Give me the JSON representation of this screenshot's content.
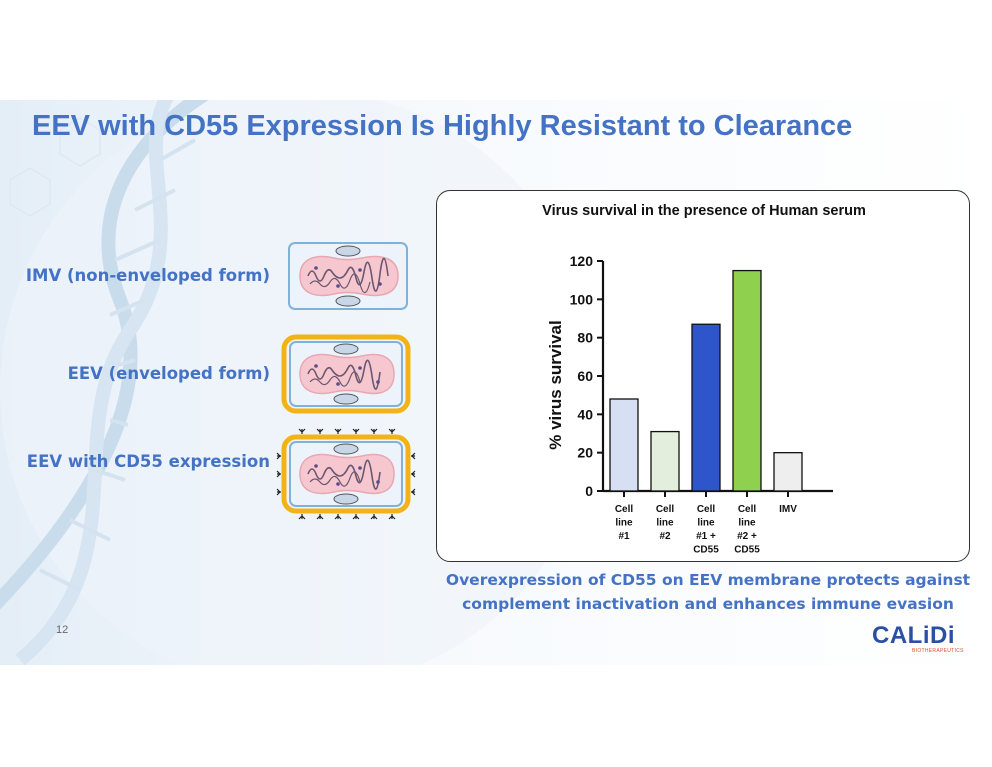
{
  "slide": {
    "title": "EEV with CD55 Expression Is Highly Resistant to Clearance",
    "page_number": "12",
    "labels": {
      "imv": "IMV (non-enveloped form)",
      "eev": "EEV (enveloped form)",
      "eev_cd55": "EEV with CD55 expression"
    },
    "caption": {
      "line1": "Overexpression of CD55 on EEV membrane protects against",
      "line2": "complement inactivation and enhances immune evasion"
    },
    "logo": {
      "name": "CALiDi",
      "tagline": "BIOTHERAPEUTICS"
    },
    "colors": {
      "title_blue": "#4472c4",
      "envelope_gold": "#f2b318",
      "cell_border": "#7fb2d8",
      "cell_fill": "#e9f1fa",
      "nucleoid_fill": "#f6c7cf"
    }
  },
  "chart_data": {
    "type": "bar",
    "title": "Virus survival in the presence of Human serum",
    "ylabel": "% virus survival",
    "xlabel": "",
    "ylim": [
      0,
      120
    ],
    "yticks": [
      "0",
      "20",
      "40",
      "60",
      "80",
      "100",
      "120"
    ],
    "categories": [
      [
        "Cell",
        "line",
        "#1"
      ],
      [
        "Cell",
        "line",
        "#2"
      ],
      [
        "Cell",
        "line",
        "#1 +",
        "CD55"
      ],
      [
        "Cell",
        "line",
        "#2 +",
        "CD55"
      ],
      [
        "IMV"
      ]
    ],
    "values": [
      48,
      31,
      87,
      115,
      20
    ],
    "colors": [
      "#d6e0f2",
      "#e3efdc",
      "#2f55cc",
      "#8fd14f",
      "#eeeeee"
    ]
  }
}
